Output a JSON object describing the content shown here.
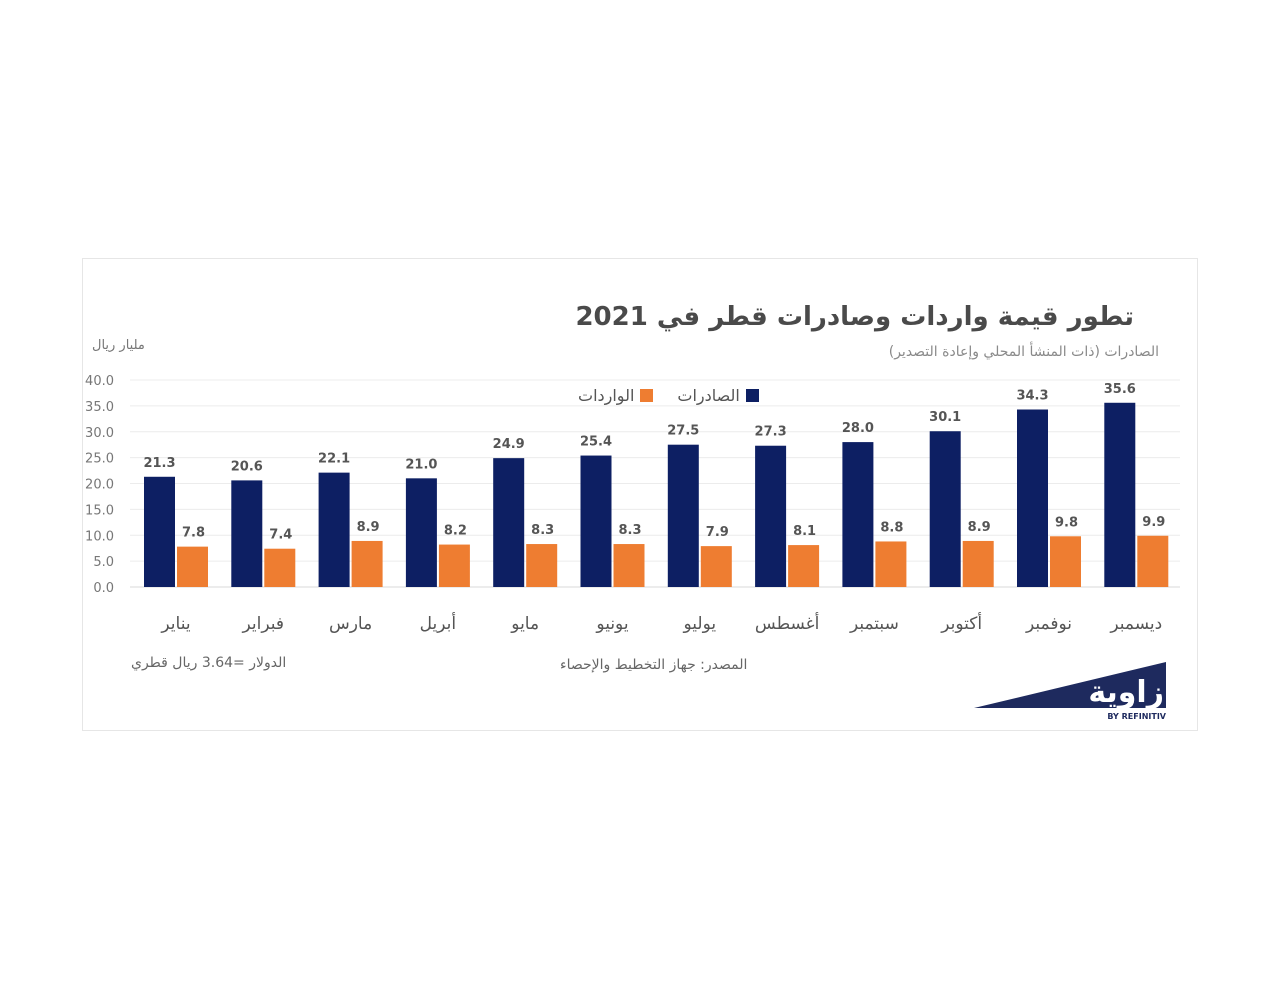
{
  "title": "تطور قيمة واردات وصادرات قطر في 2021",
  "subtitle": "الصادرات  (ذات المنشأ المحلي وإعادة التصدير)",
  "unit_label": "مليار ريال",
  "note_exchange": "الدولار =3.64 ريال قطري",
  "source": "المصدر: جهاز التخطيط والإحصاء",
  "logo": {
    "text": "زاوية",
    "tagline": "BY REFINITIV"
  },
  "colors": {
    "exports": "#0d1f63",
    "imports": "#ee7d31",
    "grid": "#ececec",
    "axis": "#d9d9d9"
  },
  "chart_data": {
    "type": "bar",
    "categories": [
      "يناير",
      "فبراير",
      "مارس",
      "أبريل",
      "مايو",
      "يونيو",
      "يوليو",
      "أغسطس",
      "سبتمبر",
      "أكتوبر",
      "نوفمبر",
      "ديسمبر"
    ],
    "series": [
      {
        "name": "الصادرات",
        "values": [
          21.3,
          20.6,
          22.1,
          21.0,
          24.9,
          25.4,
          27.5,
          27.3,
          28.0,
          30.1,
          34.3,
          35.6
        ]
      },
      {
        "name": "الواردات",
        "values": [
          7.8,
          7.4,
          8.9,
          8.2,
          8.3,
          8.3,
          7.9,
          8.1,
          8.8,
          8.9,
          9.8,
          9.9
        ]
      }
    ],
    "ylim": [
      0,
      40
    ],
    "yticks": [
      "0.0",
      "5.0",
      "10.0",
      "15.0",
      "20.0",
      "25.0",
      "30.0",
      "35.0",
      "40.0"
    ],
    "legend_position": "top-center",
    "grid": true
  }
}
